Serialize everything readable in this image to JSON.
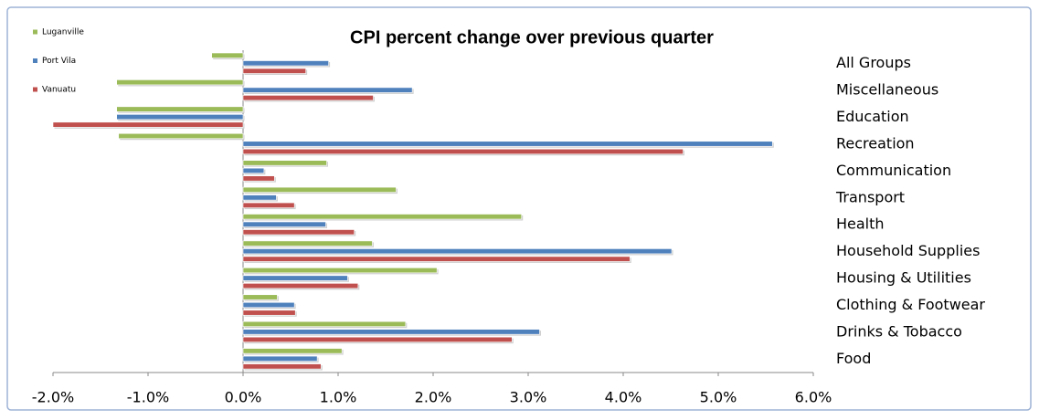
{
  "chart_data": {
    "type": "bar",
    "orientation": "horizontal",
    "title": "CPI  percent change over previous quarter",
    "categories": [
      "All Groups",
      "Miscellaneous",
      "Education",
      "Recreation",
      "Communication",
      "Transport",
      "Health",
      "Household Supplies",
      "Housing & Utilities",
      "Clothing  & Footwear",
      "Drinks  & Tobacco",
      "Food"
    ],
    "series": [
      {
        "name": "Luganville",
        "color": "#9bbb59",
        "values": [
          -0.33,
          -1.33,
          -1.33,
          -1.31,
          0.88,
          1.61,
          2.93,
          1.36,
          2.04,
          0.36,
          1.71,
          1.04
        ]
      },
      {
        "name": "Port Vila",
        "color": "#4f81bd",
        "values": [
          0.9,
          1.78,
          -1.33,
          5.57,
          0.22,
          0.35,
          0.87,
          4.51,
          1.1,
          0.54,
          3.12,
          0.78
        ]
      },
      {
        "name": "Vanuatu",
        "color": "#c0504d",
        "values": [
          0.66,
          1.37,
          -2.0,
          4.63,
          0.33,
          0.54,
          1.17,
          4.07,
          1.21,
          0.55,
          2.83,
          0.82
        ]
      }
    ],
    "xlim": [
      -2,
      6
    ],
    "xticks": [
      {
        "value": -2,
        "label": "-2.0%"
      },
      {
        "value": -1,
        "label": "-1.0%"
      },
      {
        "value": 0,
        "label": "0.0%"
      },
      {
        "value": 1,
        "label": "1.0%"
      },
      {
        "value": 2,
        "label": "2.0%"
      },
      {
        "value": 3,
        "label": "3.0%"
      },
      {
        "value": 4,
        "label": "4.0%"
      },
      {
        "value": 5,
        "label": "5.0%"
      },
      {
        "value": 6,
        "label": "6.0%"
      }
    ],
    "legend": "top-left"
  }
}
